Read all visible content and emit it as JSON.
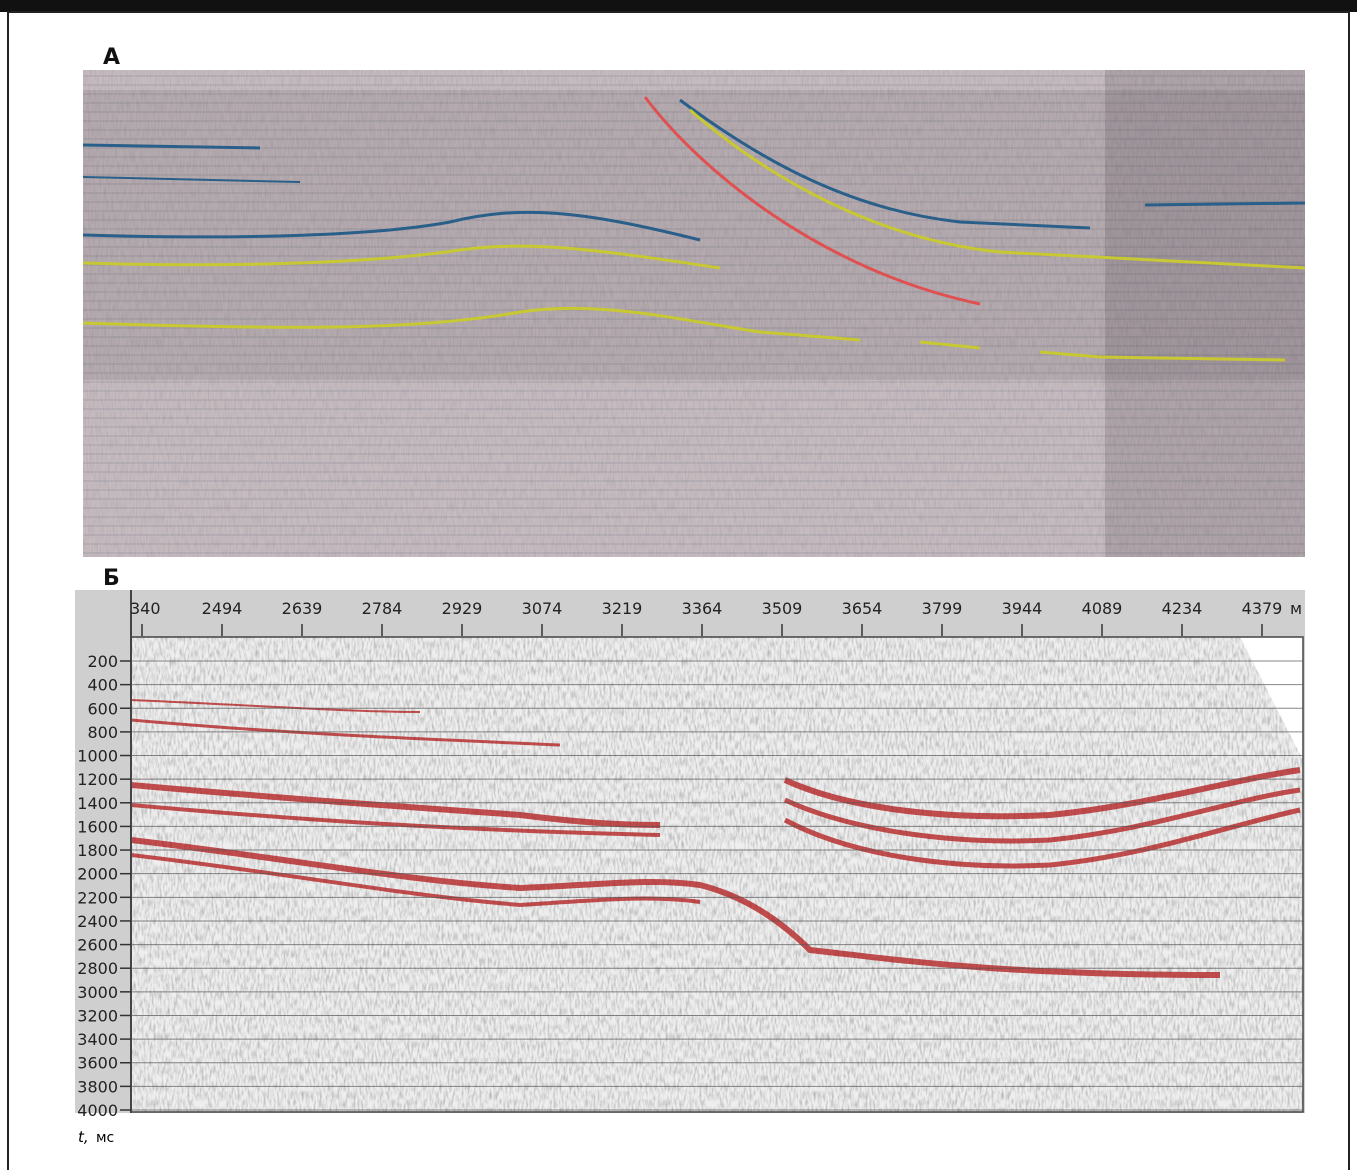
{
  "panel_a": {
    "label": "А"
  },
  "panel_b": {
    "label": "Б",
    "x_ticks": [
      340,
      2494,
      2639,
      2784,
      2929,
      3074,
      3219,
      3364,
      3509,
      3654,
      3799,
      3944,
      4089,
      4234,
      4379
    ],
    "x_unit": "м",
    "y_ticks": [
      200,
      400,
      600,
      800,
      1000,
      1200,
      1400,
      1600,
      1800,
      2000,
      2200,
      2400,
      2600,
      2800,
      3000,
      3200,
      3400,
      3600,
      3800,
      4000
    ],
    "y_axis_symbol": "t,",
    "y_unit": "мс"
  }
}
